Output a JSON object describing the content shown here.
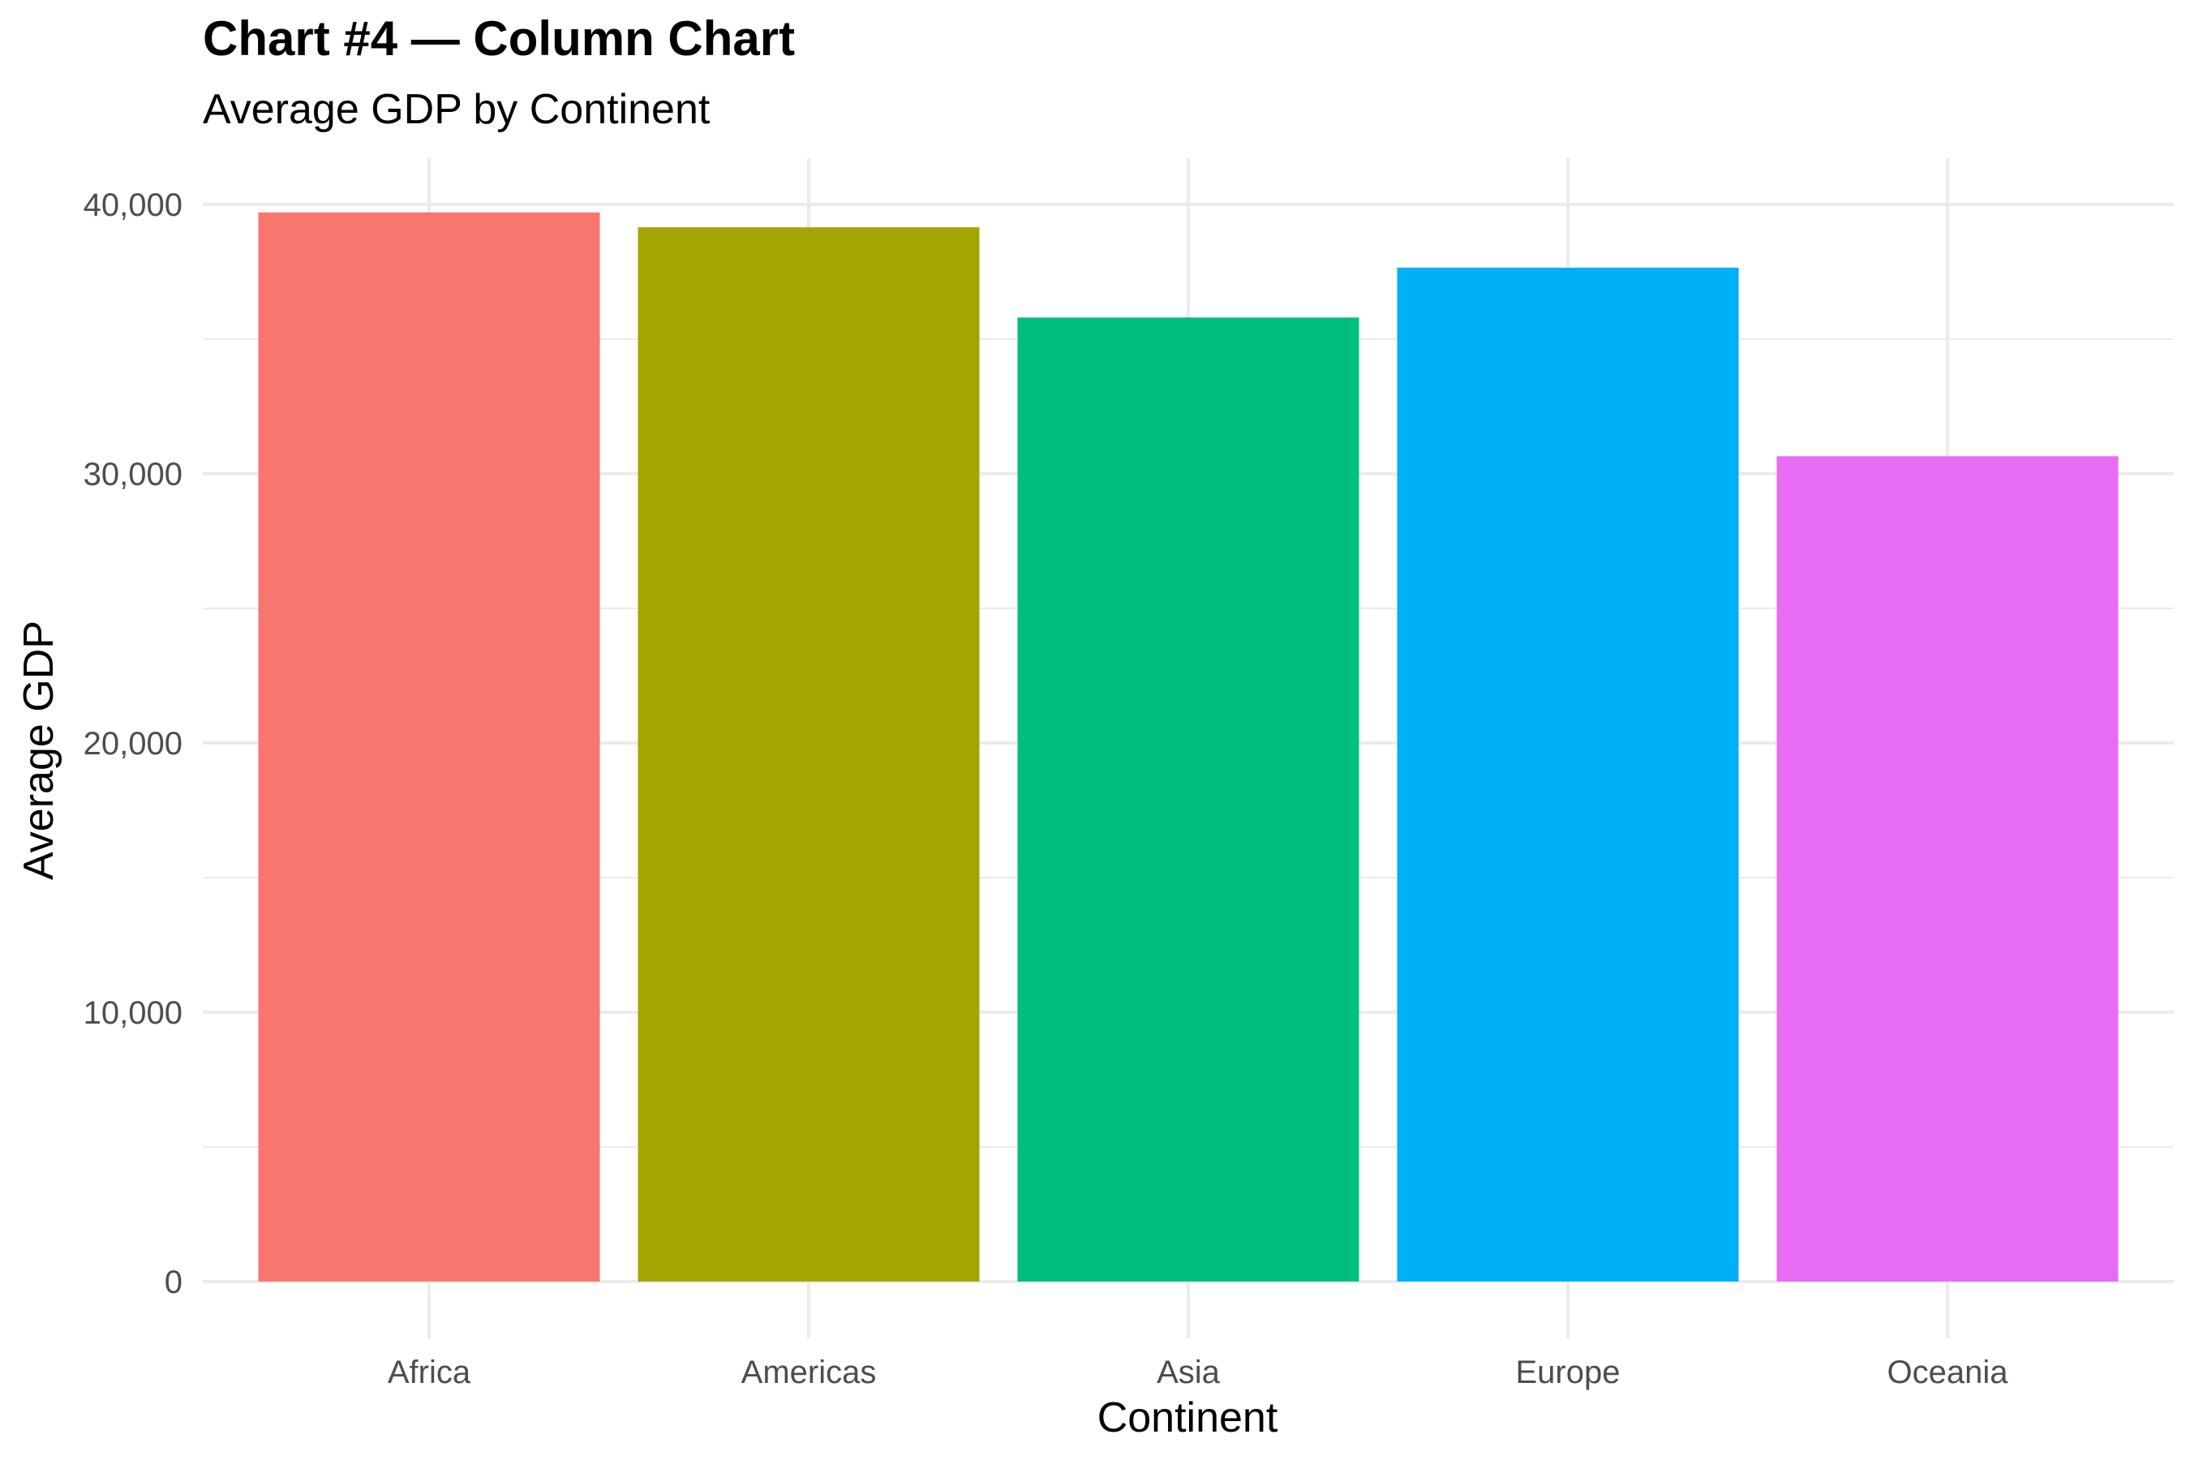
{
  "chart_data": {
    "type": "bar",
    "title": "Chart #4 — Column Chart",
    "subtitle": "Average GDP by Continent",
    "xlabel": "Continent",
    "ylabel": "Average GDP",
    "categories": [
      "Africa",
      "Americas",
      "Asia",
      "Europe",
      "Oceania"
    ],
    "values": [
      39700,
      39150,
      35800,
      37650,
      30650
    ],
    "colors": [
      "#F8766D",
      "#A3A500",
      "#00BF7D",
      "#00B0F6",
      "#E76BF3"
    ],
    "ylim": [
      0,
      41000
    ],
    "yticks": [
      0,
      10000,
      20000,
      30000,
      40000
    ],
    "ytick_labels": [
      "0",
      "10,000",
      "20,000",
      "30,000",
      "40,000"
    ],
    "y_minor_ticks": [
      5000,
      15000,
      25000,
      35000
    ],
    "grid": true,
    "legend": "none",
    "gridline_color": "#ebebeb"
  }
}
